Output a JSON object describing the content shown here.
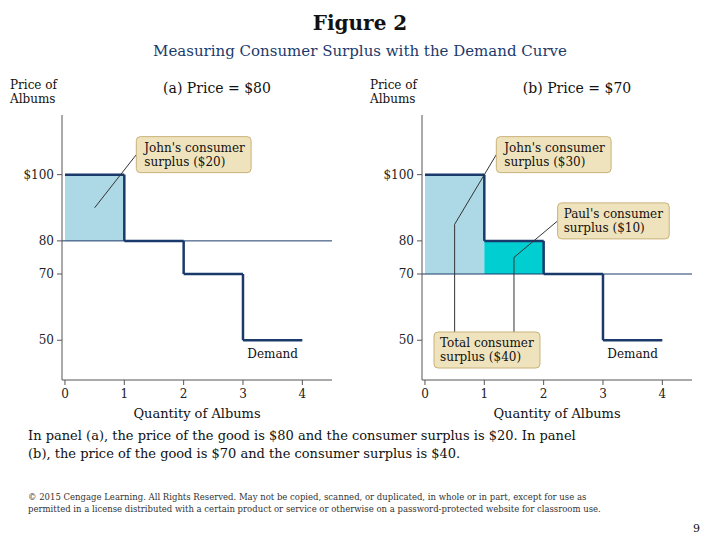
{
  "title": "Figure 2",
  "subtitle": "Measuring Consumer Surplus with the Demand Curve",
  "caption": [
    "In panel (a), the price of the good is $80 and the consumer surplus is $20. In panel",
    "(b), the price of the good is $70 and the consumer surplus is $40."
  ],
  "footer": [
    "© 2015 Cengage Learning. All Rights Reserved. May not be copied, scanned, or duplicated, in whole or in part, except for use as",
    "permitted in a license distributed with a certain product or service or otherwise on a password-protected website for classroom use."
  ],
  "page_number": "9",
  "chart_data": [
    {
      "type": "step",
      "title": "(a) Price = $80",
      "xlabel": "Quantity of Albums",
      "ylabel": "Price of\nAlbums",
      "xlim": [
        -0.05,
        4.5
      ],
      "ylim": [
        38,
        118
      ],
      "xticks": [
        0,
        1,
        2,
        3,
        4
      ],
      "yticks": [
        50,
        70,
        80,
        {
          "value": 100,
          "label": "$100"
        }
      ],
      "bins": [
        0,
        1,
        2,
        3,
        4
      ],
      "series": [
        {
          "name": "Demand",
          "color": "#1a3a6b",
          "values": [
            100,
            80,
            70,
            50
          ]
        }
      ],
      "price": 80,
      "areas": [
        {
          "label": "John's consumer\nsurplus ($20)",
          "x": [
            0,
            1
          ],
          "low": 80,
          "high": 100,
          "color": "#ADD8E6"
        }
      ],
      "annotations": []
    },
    {
      "type": "step",
      "title": "(b) Price = $70",
      "xlabel": "Quantity of Albums",
      "ylabel": "Price of\nAlbums",
      "xlim": [
        -0.05,
        4.5
      ],
      "ylim": [
        38,
        118
      ],
      "xticks": [
        0,
        1,
        2,
        3,
        4
      ],
      "yticks": [
        50,
        70,
        80,
        {
          "value": 100,
          "label": "$100"
        }
      ],
      "bins": [
        0,
        1,
        2,
        3,
        4
      ],
      "series": [
        {
          "name": "Demand",
          "color": "#1a3a6b",
          "values": [
            100,
            80,
            70,
            50
          ]
        }
      ],
      "price": 70,
      "areas": [
        {
          "label": "John's consumer\nsurplus ($30)",
          "x": [
            0,
            1
          ],
          "low": 70,
          "high": 100,
          "color": "#ADD8E6"
        },
        {
          "label": "Paul's consumer\nsurplus ($10)",
          "x": [
            1,
            2
          ],
          "low": 70,
          "high": 80,
          "color": "#00CED1"
        }
      ],
      "annotations": [
        "Total consumer\nsurplus ($40)"
      ]
    }
  ]
}
